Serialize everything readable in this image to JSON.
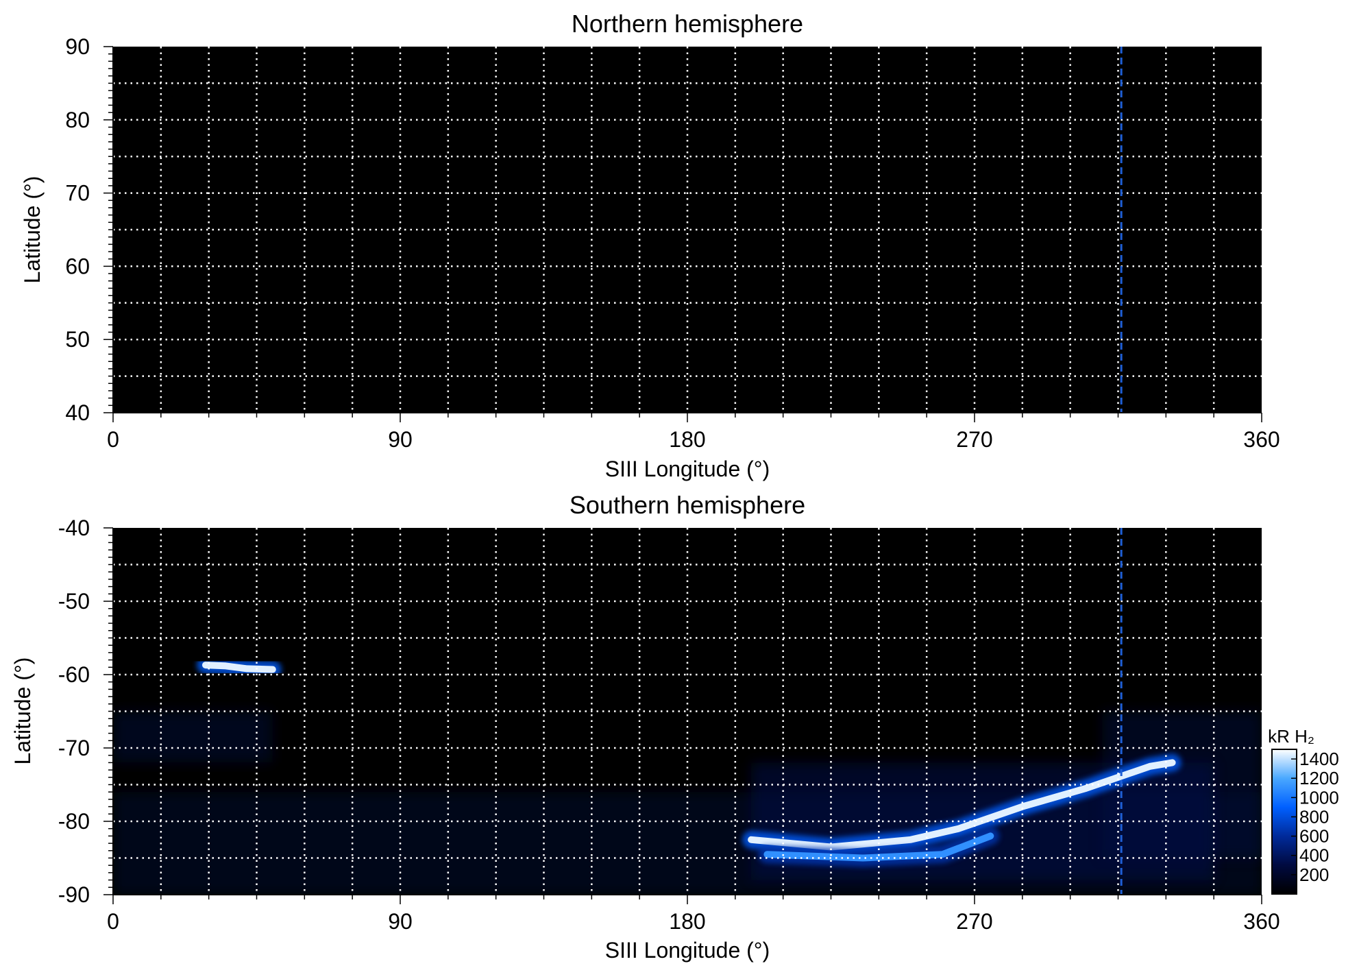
{
  "chart_data": [
    {
      "type": "heatmap",
      "title": "Northern hemisphere",
      "xlabel": "SIII Longitude (°)",
      "ylabel": "Latitude (°)",
      "xlim": [
        0,
        360
      ],
      "ylim": [
        40,
        90
      ],
      "xticks": [
        "0",
        "90",
        "180",
        "270",
        "360"
      ],
      "yticks": [
        "90",
        "80",
        "70",
        "60",
        "50",
        "40"
      ],
      "xtick_values": [
        0,
        90,
        180,
        270,
        360
      ],
      "ytick_values": [
        90,
        80,
        70,
        60,
        50,
        40
      ],
      "grid": true,
      "grid_x_step": 15,
      "grid_y_step": 5,
      "reference_longitude": 316,
      "emission_regions": []
    },
    {
      "type": "heatmap",
      "title": "Southern hemisphere",
      "xlabel": "SIII Longitude (°)",
      "ylabel": "Latitude (°)",
      "xlim": [
        0,
        360
      ],
      "ylim": [
        -90,
        -40
      ],
      "xticks": [
        "0",
        "90",
        "180",
        "270",
        "360"
      ],
      "yticks": [
        "-40",
        "-50",
        "-60",
        "-70",
        "-80",
        "-90"
      ],
      "xtick_values": [
        0,
        90,
        180,
        270,
        360
      ],
      "ytick_values": [
        -40,
        -50,
        -60,
        -70,
        -80,
        -90
      ],
      "grid": true,
      "grid_x_step": 15,
      "grid_y_step": 5,
      "reference_longitude": 316,
      "emission_regions": [
        {
          "kind": "background",
          "lon": [
            0,
            50
          ],
          "lat": [
            -72,
            -65
          ],
          "intensity": 250
        },
        {
          "kind": "background",
          "lon": [
            0,
            360
          ],
          "lat": [
            -90,
            -76
          ],
          "intensity": 220
        },
        {
          "kind": "background",
          "lon": [
            310,
            360
          ],
          "lat": [
            -85,
            -65
          ],
          "intensity": 260
        },
        {
          "kind": "background",
          "lon": [
            200,
            345
          ],
          "lat": [
            -88,
            -72
          ],
          "intensity": 320
        },
        {
          "kind": "arc",
          "points": [
            [
              29,
              -58.7
            ],
            [
              35,
              -58.8
            ],
            [
              42,
              -59.2
            ],
            [
              50,
              -59.3
            ]
          ],
          "intensity": 1450
        },
        {
          "kind": "arc",
          "points": [
            [
              200,
              -82.5
            ],
            [
              225,
              -83.5
            ],
            [
              250,
              -82.5
            ],
            [
              265,
              -81
            ],
            [
              285,
              -78
            ],
            [
              305,
              -75.5
            ],
            [
              325,
              -72.5
            ],
            [
              332,
              -72
            ]
          ],
          "intensity": 1450
        },
        {
          "kind": "arc",
          "points": [
            [
              205,
              -84.5
            ],
            [
              235,
              -85
            ],
            [
              260,
              -84.5
            ],
            [
              275,
              -82
            ]
          ],
          "intensity": 1100
        }
      ]
    }
  ],
  "colorbar": {
    "title": "kR H₂",
    "min": 0,
    "max": 1500,
    "ticks": [
      200,
      400,
      600,
      800,
      1000,
      1200,
      1400
    ],
    "tick_labels": [
      "200",
      "400",
      "600",
      "800",
      "1000",
      "1200",
      "1400"
    ],
    "colors": [
      "#000000",
      "#000a40",
      "#002a9a",
      "#0060ff",
      "#4aa8ff",
      "#ffffff"
    ]
  }
}
